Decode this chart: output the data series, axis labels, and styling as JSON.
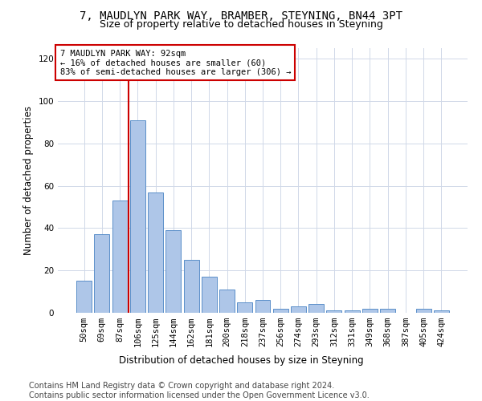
{
  "title": "7, MAUDLYN PARK WAY, BRAMBER, STEYNING, BN44 3PT",
  "subtitle": "Size of property relative to detached houses in Steyning",
  "xlabel": "Distribution of detached houses by size in Steyning",
  "ylabel": "Number of detached properties",
  "bar_labels": [
    "50sqm",
    "69sqm",
    "87sqm",
    "106sqm",
    "125sqm",
    "144sqm",
    "162sqm",
    "181sqm",
    "200sqm",
    "218sqm",
    "237sqm",
    "256sqm",
    "274sqm",
    "293sqm",
    "312sqm",
    "331sqm",
    "349sqm",
    "368sqm",
    "387sqm",
    "405sqm",
    "424sqm"
  ],
  "bar_values": [
    15,
    37,
    53,
    91,
    57,
    39,
    25,
    17,
    11,
    5,
    6,
    2,
    3,
    4,
    1,
    1,
    2,
    2,
    0,
    2,
    1
  ],
  "bar_color": "#aec6e8",
  "bar_edge_color": "#5b8fc9",
  "vline_x_idx": 2,
  "vline_color": "#cc0000",
  "annotation_text": "7 MAUDLYN PARK WAY: 92sqm\n← 16% of detached houses are smaller (60)\n83% of semi-detached houses are larger (306) →",
  "annotation_box_color": "#ffffff",
  "annotation_box_edge": "#cc0000",
  "ylim": [
    0,
    125
  ],
  "yticks": [
    0,
    20,
    40,
    60,
    80,
    100,
    120
  ],
  "footer": "Contains HM Land Registry data © Crown copyright and database right 2024.\nContains public sector information licensed under the Open Government Licence v3.0.",
  "bg_color": "#ffffff",
  "grid_color": "#d0d8e8",
  "title_fontsize": 10,
  "subtitle_fontsize": 9,
  "axis_label_fontsize": 8.5,
  "tick_fontsize": 7.5,
  "footer_fontsize": 7,
  "annotation_fontsize": 7.5
}
